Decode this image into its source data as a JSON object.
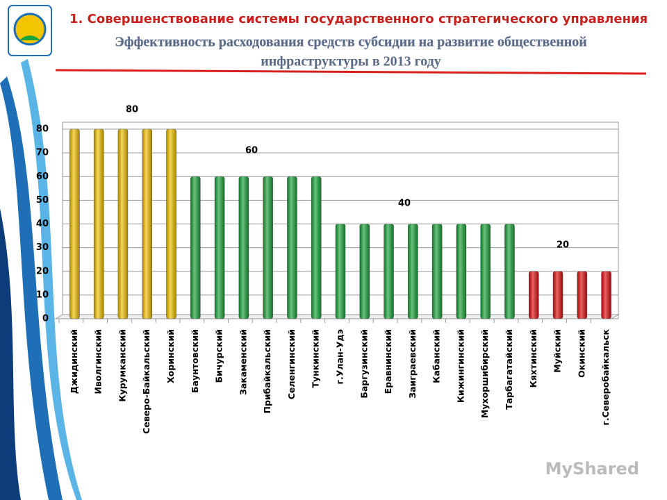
{
  "title": "1. Совершенствование системы государственного стратегического управления",
  "subtitle": [
    "Эффективность расходования средств субсидии на развитие общественной",
    "инфраструктуры в 2013 году"
  ],
  "watermark": "MyShared",
  "chart_data": {
    "type": "bar",
    "categories": [
      "Джидинский",
      "Иволгинский",
      "Курумканский",
      "Северо-Байкальский",
      "Хоринский",
      "Баунтовский",
      "Бичурский",
      "Закаменский",
      "Прибайкальский",
      "Селенгинский",
      "Тункинский",
      "г.Улан-Удэ",
      "Баргузинский",
      "Еравнинский",
      "Заиграевский",
      "Кабанский",
      "Кижингинский",
      "Мухоршибирский",
      "Тарбагатайский",
      "Кяхтинский",
      "Муйский",
      "Окинский",
      "г.Северобайкальск"
    ],
    "values": [
      80,
      80,
      80,
      80,
      80,
      60,
      60,
      60,
      60,
      60,
      60,
      40,
      40,
      40,
      40,
      40,
      40,
      40,
      40,
      20,
      20,
      20,
      20
    ],
    "colors": [
      "#f2c200",
      "#f2c200",
      "#f2c200",
      "#f2c200",
      "#f2c200",
      "#1aa53a",
      "#1aa53a",
      "#1aa53a",
      "#1aa53a",
      "#1aa53a",
      "#1aa53a",
      "#1aa53a",
      "#1aa53a",
      "#1aa53a",
      "#1aa53a",
      "#1aa53a",
      "#1aa53a",
      "#1aa53a",
      "#1aa53a",
      "#e01010",
      "#e01010",
      "#e01010",
      "#e01010"
    ],
    "annotations": [
      "80",
      "60",
      "40",
      "20"
    ],
    "ylim": [
      0,
      80
    ],
    "yticks": [
      0,
      10,
      20,
      30,
      40,
      50,
      60,
      70,
      80
    ],
    "grid": true
  }
}
